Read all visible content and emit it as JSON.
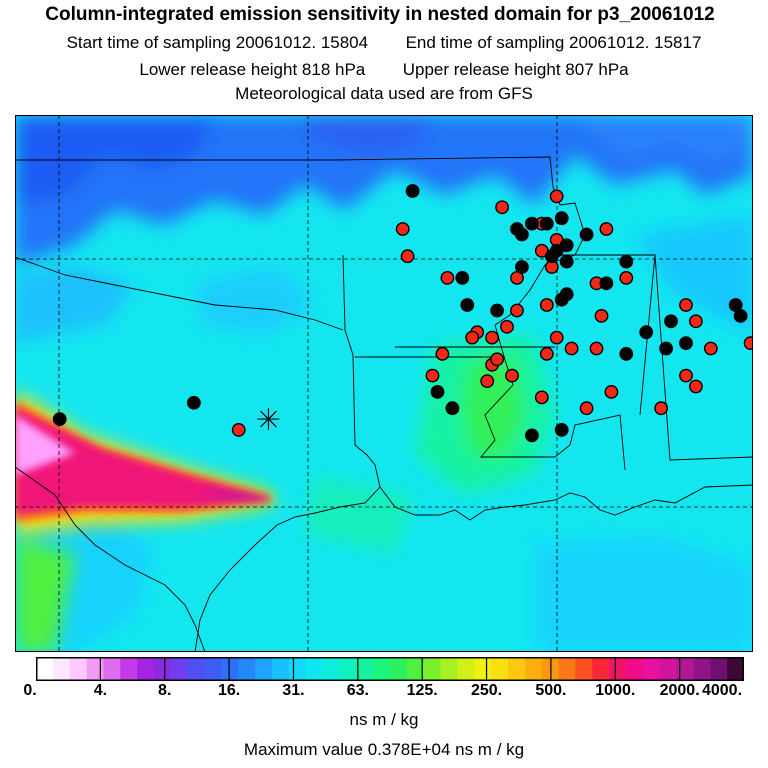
{
  "header": {
    "title": "Column-integrated emission sensitivity in nested domain for p3_20061012",
    "start_label": "Start time of sampling",
    "start_value": "20061012. 15804",
    "end_label": "End time of sampling",
    "end_value": "20061012. 15817",
    "lower_label": "Lower release height",
    "lower_value": "818 hPa",
    "upper_label": "Upper release height",
    "upper_value": "807 hPa",
    "met_line": "Meteorological data used are from GFS"
  },
  "colorbar": {
    "ticks": [
      "0.",
      "4.",
      "8.",
      "16.",
      "31.",
      "63.",
      "125.",
      "250.",
      "500.",
      "1000.",
      "2000.",
      "4000."
    ],
    "colors": [
      "#ffffff",
      "#ffe6ff",
      "#ffc8ff",
      "#f09cf4",
      "#dd6cef",
      "#c33ae6",
      "#a424e0",
      "#8a2be2",
      "#6f3ef0",
      "#5050f2",
      "#3e5df5",
      "#2e70f8",
      "#2488fb",
      "#1ea4fd",
      "#18c0fd",
      "#12d8fc",
      "#0ee6f0",
      "#0eecdc",
      "#10f0c0",
      "#14f2a0",
      "#1cf47c",
      "#2cf05c",
      "#50f040",
      "#7cf02c",
      "#a8f020",
      "#d0f018",
      "#f0f012",
      "#f8e010",
      "#fcc810",
      "#fcb010",
      "#fc9810",
      "#fc7818",
      "#fc5020",
      "#f82838",
      "#f01468",
      "#f00c88",
      "#e8109c",
      "#d014a0",
      "#b01898",
      "#901488",
      "#701070",
      "#3c0838"
    ],
    "units": "ns m / kg"
  },
  "max_value": {
    "label": "Maximum value",
    "value": "0.378E+04 ns m / kg"
  },
  "map": {
    "background_color": "#14e6f0",
    "release_site": {
      "lon": -97.6,
      "lat": 29.4
    },
    "stations_red": [
      [
        -91.8,
        33.5
      ],
      [
        -92.1,
        33.0
      ],
      [
        -91.9,
        32.2
      ],
      [
        -91.0,
        31.9
      ],
      [
        -90.9,
        31.3
      ],
      [
        -89.2,
        30.2
      ],
      [
        -88.7,
        30.7
      ],
      [
        -87.9,
        30.8
      ],
      [
        -86.2,
        30.7
      ],
      [
        -86.3,
        31.2
      ],
      [
        -85.6,
        31.4
      ],
      [
        -85.1,
        31.5
      ],
      [
        -85.3,
        31.0
      ],
      [
        -85.7,
        30.9
      ],
      [
        -89.0,
        31.2
      ],
      [
        -89.2,
        31.5
      ],
      [
        -91.0,
        30.7
      ],
      [
        -91.8,
        30.9
      ],
      [
        -92.0,
        30.6
      ],
      [
        -92.7,
        30.2
      ],
      [
        -94.1,
        30.6
      ],
      [
        -94.3,
        30.2
      ],
      [
        -93.2,
        30.1
      ],
      [
        -93.1,
        30.4
      ],
      [
        -92.1,
        29.8
      ],
      [
        -91.2,
        29.6
      ],
      [
        -90.7,
        29.9
      ],
      [
        -89.7,
        29.6
      ],
      [
        -89.0,
        30.0
      ],
      [
        -92.0,
        31.5
      ],
      [
        -92.6,
        31.4
      ],
      [
        -92.6,
        32.0
      ],
      [
        -92.1,
        32.5
      ],
      [
        -91.8,
        32.7
      ],
      [
        -90.8,
        32.9
      ],
      [
        -90.4,
        32.0
      ],
      [
        -93.1,
        30.9
      ],
      [
        -93.4,
        31.0
      ],
      [
        -93.5,
        30.9
      ],
      [
        -94.8,
        32.4
      ],
      [
        -94.9,
        32.9
      ],
      [
        -92.9,
        33.3
      ],
      [
        -94.0,
        32.0
      ],
      [
        -98.2,
        29.2
      ],
      [
        -93.0,
        30.5
      ],
      [
        -91.5,
        30.7
      ],
      [
        -92.8,
        31.1
      ]
    ],
    "stations_black": [
      [
        -101.8,
        29.4
      ],
      [
        -99.1,
        29.7
      ],
      [
        -94.7,
        33.6
      ],
      [
        -92.0,
        33.0
      ],
      [
        -92.3,
        33.0
      ],
      [
        -92.6,
        32.9
      ],
      [
        -92.5,
        32.8
      ],
      [
        -92.5,
        32.2
      ],
      [
        -91.9,
        32.4
      ],
      [
        -91.2,
        32.8
      ],
      [
        -91.6,
        32.6
      ],
      [
        -91.7,
        33.1
      ],
      [
        -93.7,
        32.0
      ],
      [
        -93.6,
        31.5
      ],
      [
        -93.0,
        31.4
      ],
      [
        -91.6,
        31.7
      ],
      [
        -91.7,
        31.6
      ],
      [
        -90.8,
        31.9
      ],
      [
        -90.4,
        32.3
      ],
      [
        -89.5,
        31.2
      ],
      [
        -89.6,
        30.7
      ],
      [
        -90.0,
        31.0
      ],
      [
        -88.2,
        31.5
      ],
      [
        -88.1,
        31.3
      ],
      [
        -87.6,
        31.2
      ],
      [
        -86.0,
        31.0
      ],
      [
        -92.3,
        29.1
      ],
      [
        -91.7,
        29.2
      ],
      [
        -94.2,
        29.9
      ],
      [
        -93.9,
        29.6
      ],
      [
        -90.4,
        30.6
      ],
      [
        -87.2,
        31.1
      ],
      [
        -89.2,
        30.8
      ],
      [
        -91.8,
        32.5
      ],
      [
        -91.6,
        32.3
      ]
    ]
  }
}
